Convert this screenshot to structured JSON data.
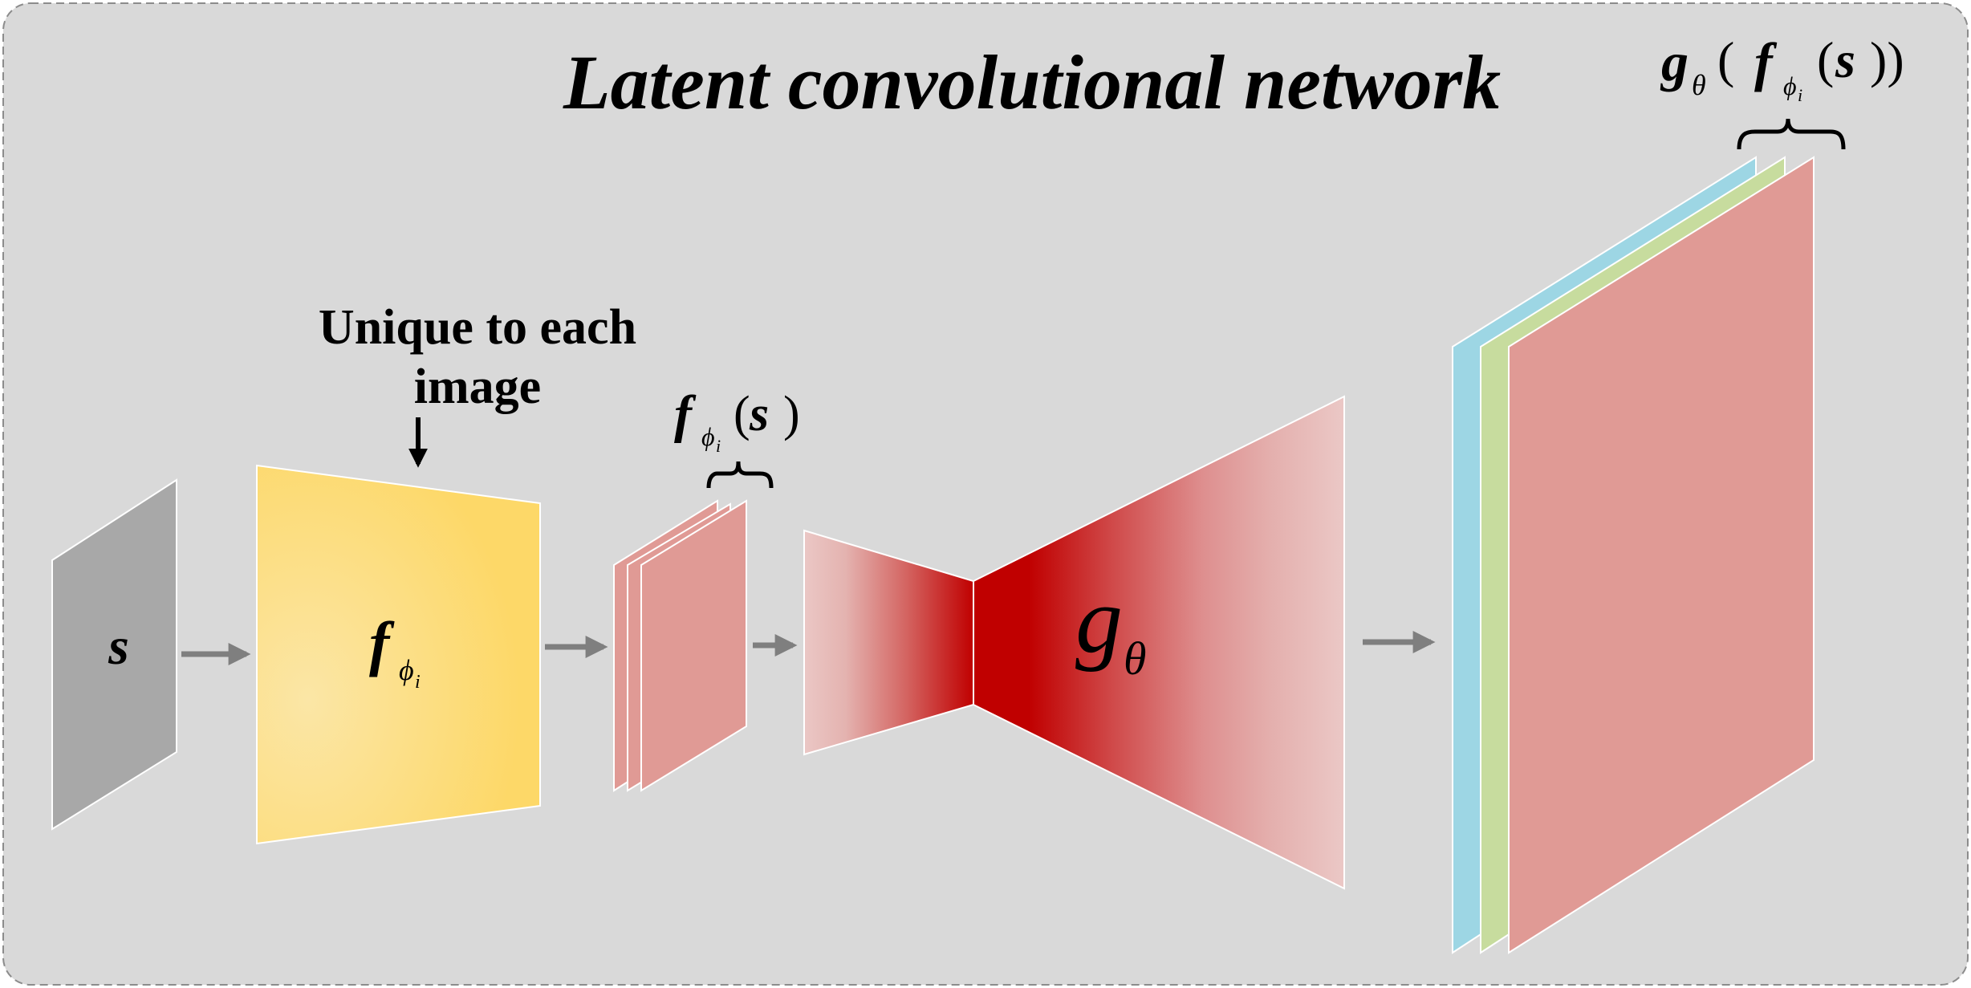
{
  "diagram": {
    "title": "Latent convolutional network",
    "annotation": {
      "line1": "Unique to each",
      "line2": "image"
    },
    "input": {
      "symbol": "s"
    },
    "encoder": {
      "symbol": "f",
      "sub": "ϕ",
      "subsub": "i"
    },
    "latent": {
      "f": "f",
      "sub": "ϕ",
      "subsub": "i",
      "open": "(",
      "arg": "s",
      "close": ")"
    },
    "generator": {
      "symbol": "g",
      "sub": "θ"
    },
    "output": {
      "g": "g",
      "gsub": "θ",
      "open1": "(",
      "f": "f",
      "fsub": "ϕ",
      "fsubsub": "i",
      "open2": "(",
      "arg": "s",
      "close": "))"
    },
    "colors": {
      "background": "#d9d9d9",
      "border": "#8c8c8c",
      "input_panel": "#a8a8a8",
      "encoder": "#fdd868",
      "encoder_highlight": "#fbe6a6",
      "feature": "#e09a95",
      "generator_dark": "#c00000",
      "generator_light": "#ebc8c6",
      "arrow": "#7f7f7f",
      "output_blue": "#9dd6e4",
      "output_green": "#c7dc9e",
      "output_red": "#e09a95"
    }
  }
}
